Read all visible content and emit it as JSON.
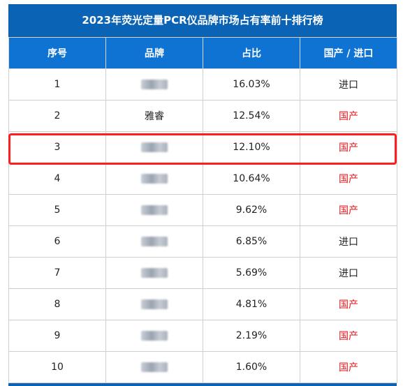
{
  "title": "2023年荧光定量PCR仪品牌市场占有率前十排行榜",
  "columns": [
    "序号",
    "品牌",
    "占比",
    "国产 / 进口"
  ],
  "colors": {
    "domestic": "#e0161b",
    "imported": "#222222",
    "header_bg": "#0f73d4",
    "title_bg": "#0b63b5",
    "highlight": "#ff1d1d"
  },
  "rows": [
    {
      "rank": "1",
      "brand": "",
      "brand_blurred": true,
      "share": "16.03%",
      "origin": "进口"
    },
    {
      "rank": "2",
      "brand": "雅睿",
      "brand_blurred": false,
      "share": "12.54%",
      "origin": "国产"
    },
    {
      "rank": "3",
      "brand": "",
      "brand_blurred": true,
      "share": "12.10%",
      "origin": "国产"
    },
    {
      "rank": "4",
      "brand": "",
      "brand_blurred": true,
      "share": "10.64%",
      "origin": "国产"
    },
    {
      "rank": "5",
      "brand": "",
      "brand_blurred": true,
      "share": "9.62%",
      "origin": "国产"
    },
    {
      "rank": "6",
      "brand": "",
      "brand_blurred": true,
      "share": "6.85%",
      "origin": "进口"
    },
    {
      "rank": "7",
      "brand": "",
      "brand_blurred": true,
      "share": "5.69%",
      "origin": "进口"
    },
    {
      "rank": "8",
      "brand": "",
      "brand_blurred": true,
      "share": "4.81%",
      "origin": "国产"
    },
    {
      "rank": "9",
      "brand": "",
      "brand_blurred": true,
      "share": "2.19%",
      "origin": "国产"
    },
    {
      "rank": "10",
      "brand": "",
      "brand_blurred": true,
      "share": "1.60%",
      "origin": "国产"
    }
  ],
  "highlighted_rank": "2"
}
